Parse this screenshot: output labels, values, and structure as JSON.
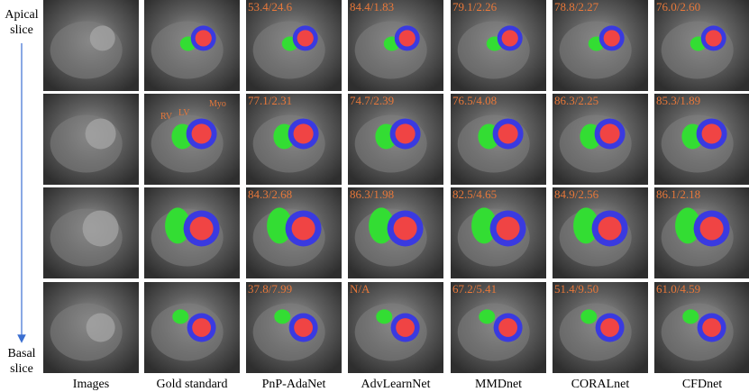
{
  "row_labels": {
    "apical": [
      "Apical",
      "slice"
    ],
    "basal": [
      "Basal",
      "slice"
    ]
  },
  "columns": [
    "Images",
    "Gold standard",
    "PnP-AdaNet",
    "AdvLearnNet",
    "MMDnet",
    "CORALnet",
    "CFDnet"
  ],
  "scores": [
    [
      "53.4/24.6",
      "84.4/1.83",
      "79.1/2.26",
      "78.8/2.27",
      "76.0/2.60"
    ],
    [
      "77.1/2.31",
      "74.7/2.39",
      "76.5/4.08",
      "86.3/2.25",
      "85.3/1.89"
    ],
    [
      "84.3/2.68",
      "86.3/1.98",
      "82.5/4.65",
      "84.9/2.56",
      "86.1/2.18"
    ],
    [
      "37.8/7.99",
      "N/A",
      "67.2/5.41",
      "51.4/9.50",
      "61.0/4.59"
    ]
  ],
  "annotations": [
    "RV",
    "LV",
    "Myo"
  ]
}
